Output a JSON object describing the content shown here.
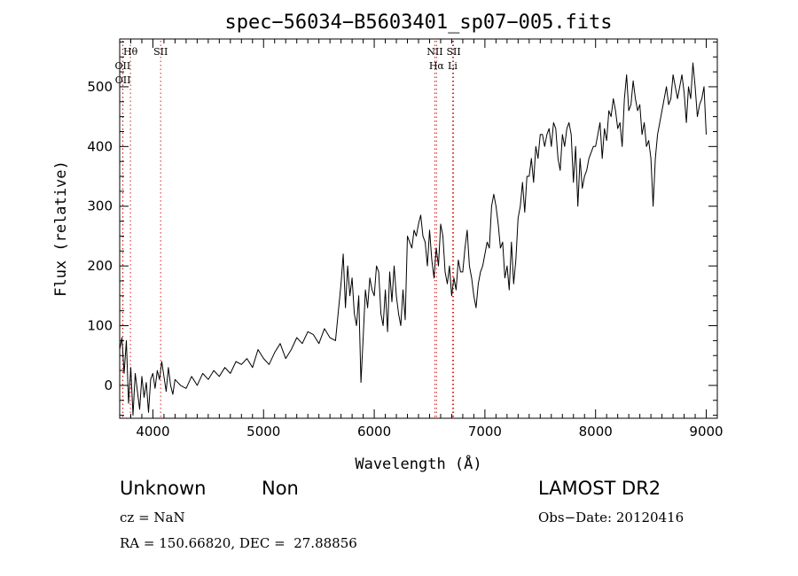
{
  "chart_data": {
    "type": "line",
    "title": "spec−56034−B5603401_sp07−005.fits",
    "xlabel": "Wavelength (Å)",
    "ylabel": "Flux (relative)",
    "xlim": [
      3700,
      9100
    ],
    "ylim": [
      -55,
      580
    ],
    "xticks": [
      4000,
      5000,
      6000,
      7000,
      8000,
      9000
    ],
    "yticks": [
      0,
      100,
      200,
      300,
      400,
      500
    ],
    "line_color": "#000000",
    "marker_color": "#cc2222",
    "series": [
      {
        "x": [
          3700,
          3720,
          3740,
          3760,
          3780,
          3800,
          3820,
          3840,
          3860,
          3880,
          3900,
          3920,
          3940,
          3960,
          3980,
          4000,
          4020,
          4040,
          4060,
          4080,
          4100,
          4120,
          4140,
          4160,
          4180,
          4200,
          4250,
          4300,
          4350,
          4400,
          4450,
          4500,
          4550,
          4600,
          4650,
          4700,
          4750,
          4800,
          4850,
          4900,
          4950,
          5000,
          5050,
          5100,
          5150,
          5200,
          5250,
          5300,
          5350,
          5400,
          5450,
          5500,
          5550,
          5600,
          5650,
          5700,
          5720,
          5740,
          5760,
          5780,
          5800,
          5820,
          5840,
          5860,
          5880,
          5900,
          5920,
          5940,
          5960,
          5980,
          6000,
          6020,
          6040,
          6060,
          6080,
          6100,
          6120,
          6140,
          6160,
          6180,
          6200,
          6220,
          6240,
          6260,
          6280,
          6300,
          6320,
          6340,
          6360,
          6380,
          6400,
          6420,
          6440,
          6460,
          6480,
          6500,
          6520,
          6540,
          6560,
          6580,
          6600,
          6620,
          6640,
          6660,
          6680,
          6700,
          6720,
          6740,
          6760,
          6780,
          6800,
          6820,
          6840,
          6860,
          6880,
          6900,
          6920,
          6940,
          6960,
          6980,
          7000,
          7020,
          7040,
          7060,
          7080,
          7100,
          7120,
          7140,
          7160,
          7180,
          7200,
          7220,
          7240,
          7260,
          7280,
          7300,
          7320,
          7340,
          7360,
          7380,
          7400,
          7420,
          7440,
          7460,
          7480,
          7500,
          7520,
          7540,
          7560,
          7580,
          7600,
          7620,
          7640,
          7660,
          7680,
          7700,
          7720,
          7740,
          7760,
          7780,
          7800,
          7820,
          7840,
          7860,
          7880,
          7900,
          7920,
          7940,
          7960,
          7980,
          8000,
          8020,
          8040,
          8060,
          8080,
          8100,
          8120,
          8140,
          8160,
          8180,
          8200,
          8220,
          8240,
          8260,
          8280,
          8300,
          8320,
          8340,
          8360,
          8380,
          8400,
          8420,
          8440,
          8460,
          8480,
          8500,
          8520,
          8540,
          8560,
          8580,
          8600,
          8620,
          8640,
          8660,
          8680,
          8700,
          8720,
          8740,
          8760,
          8780,
          8800,
          8820,
          8840,
          8860,
          8880,
          8900,
          8920,
          8940,
          8960,
          8980,
          9000
        ],
        "y": [
          60,
          80,
          20,
          75,
          -30,
          30,
          -50,
          20,
          -10,
          -40,
          15,
          -20,
          5,
          -45,
          10,
          20,
          -5,
          25,
          10,
          40,
          15,
          -10,
          30,
          0,
          -15,
          10,
          0,
          -5,
          15,
          0,
          20,
          10,
          25,
          15,
          30,
          20,
          40,
          35,
          45,
          30,
          60,
          45,
          35,
          55,
          70,
          45,
          60,
          80,
          70,
          90,
          85,
          70,
          95,
          80,
          75,
          170,
          220,
          130,
          200,
          150,
          180,
          120,
          100,
          150,
          5,
          80,
          160,
          130,
          180,
          160,
          150,
          200,
          190,
          120,
          100,
          160,
          90,
          190,
          140,
          200,
          150,
          120,
          100,
          160,
          110,
          250,
          240,
          230,
          260,
          250,
          270,
          285,
          250,
          240,
          200,
          260,
          210,
          180,
          230,
          200,
          270,
          250,
          190,
          170,
          200,
          150,
          180,
          160,
          210,
          190,
          190,
          230,
          260,
          200,
          180,
          150,
          130,
          170,
          190,
          200,
          220,
          240,
          230,
          300,
          320,
          300,
          270,
          230,
          240,
          180,
          200,
          160,
          240,
          170,
          210,
          280,
          300,
          340,
          290,
          350,
          350,
          380,
          340,
          400,
          380,
          420,
          420,
          400,
          420,
          430,
          400,
          440,
          430,
          380,
          360,
          420,
          400,
          430,
          440,
          420,
          340,
          400,
          300,
          380,
          330,
          350,
          360,
          380,
          390,
          400,
          400,
          420,
          440,
          380,
          430,
          410,
          460,
          450,
          480,
          460,
          430,
          440,
          400,
          480,
          520,
          460,
          470,
          510,
          480,
          460,
          470,
          420,
          440,
          400,
          410,
          380,
          300,
          380,
          420,
          440,
          460,
          480,
          500,
          470,
          480,
          520,
          500,
          480,
          500,
          520,
          490,
          440,
          500,
          480,
          540,
          500,
          450,
          470,
          480,
          500,
          420
        ]
      }
    ],
    "spectral_lines": [
      {
        "label": "Hθ",
        "wavelength": 3797
      },
      {
        "label": "OII",
        "wavelength": 3727
      },
      {
        "label": "OII",
        "wavelength": 3729
      },
      {
        "label": "SII",
        "wavelength": 4070
      },
      {
        "label": "NII",
        "wavelength": 6548
      },
      {
        "label": "Hα",
        "wavelength": 6563
      },
      {
        "label": "SII",
        "wavelength": 6717
      },
      {
        "label": "Li",
        "wavelength": 6708
      }
    ]
  },
  "info": {
    "object_class": "Unknown",
    "subclass": "Non",
    "survey": "LAMOST DR2",
    "cz": "cz = NaN",
    "obs_date": "Obs−Date: 20120416",
    "coords": "RA = 150.66820, DEC =  27.88856"
  }
}
